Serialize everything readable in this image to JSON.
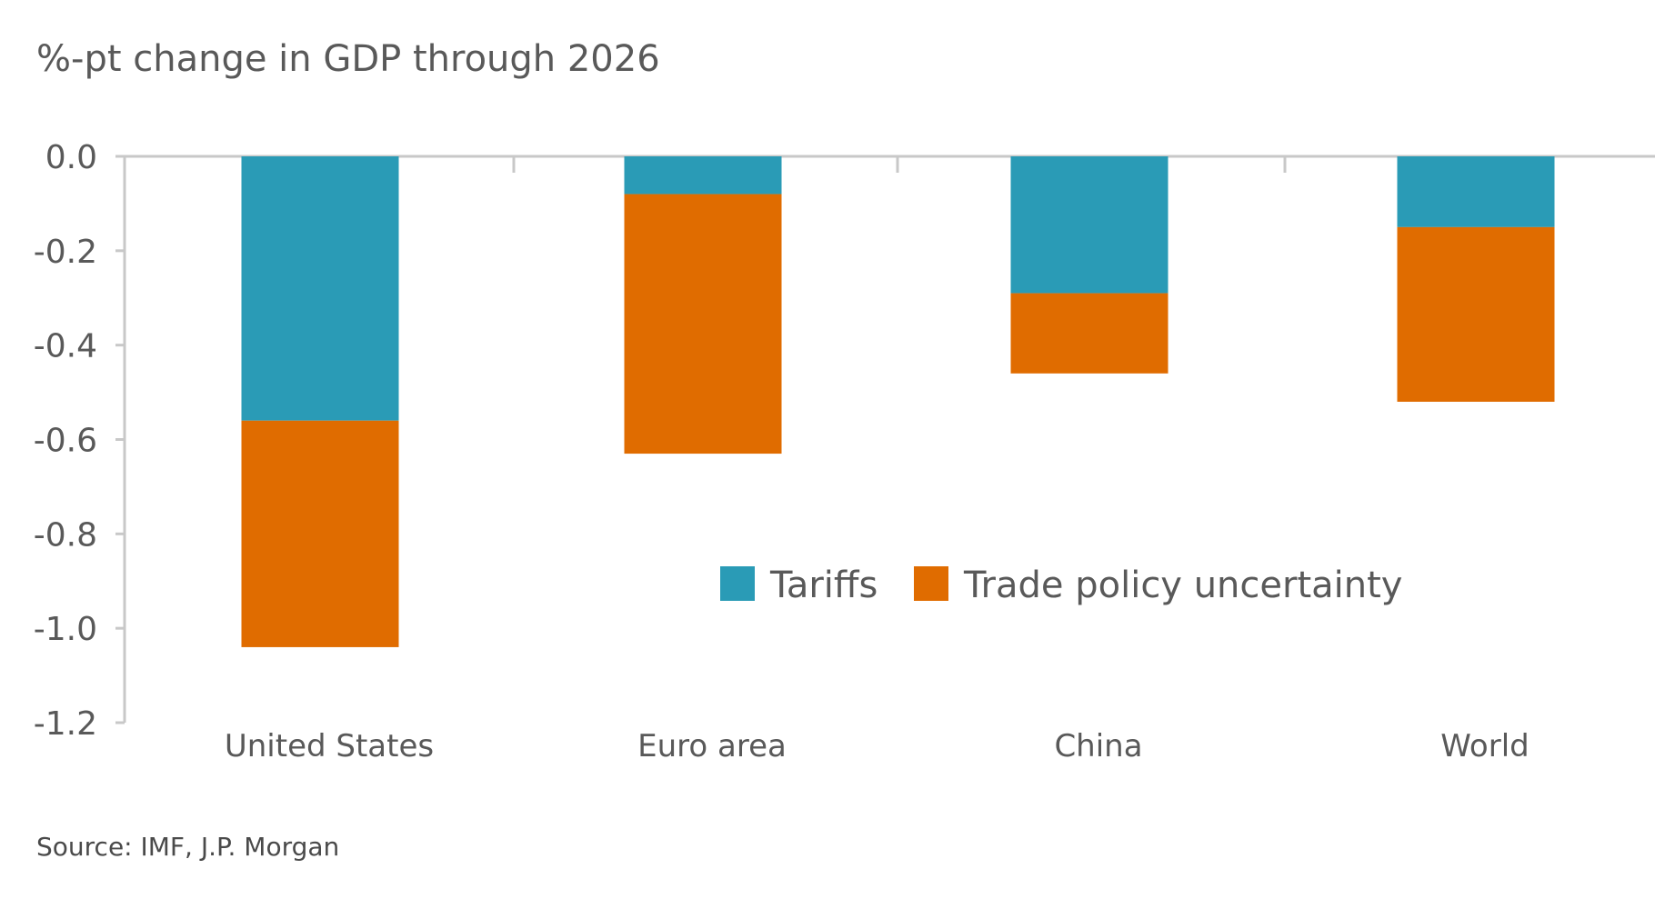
{
  "chart_data": {
    "type": "bar",
    "stacked": true,
    "title": "%-pt change in GDP through 2026",
    "categories": [
      "United States",
      "Euro area",
      "China",
      "World"
    ],
    "series": [
      {
        "name": "Tariffs",
        "values": [
          -0.56,
          -0.08,
          -0.29,
          -0.15
        ],
        "color": "#2a9bb6"
      },
      {
        "name": "Trade policy uncertainty",
        "values": [
          -0.48,
          -0.55,
          -0.17,
          -0.37
        ],
        "color": "#e06c00"
      }
    ],
    "ylim": [
      -1.2,
      0.0
    ],
    "yticks": [
      "0.0",
      "-0.2",
      "-0.4",
      "-0.6",
      "-0.8",
      "-1.0",
      "-1.2"
    ],
    "legend_position": "lower-right",
    "grid": false
  },
  "source": "Source: IMF, J.P. Morgan"
}
